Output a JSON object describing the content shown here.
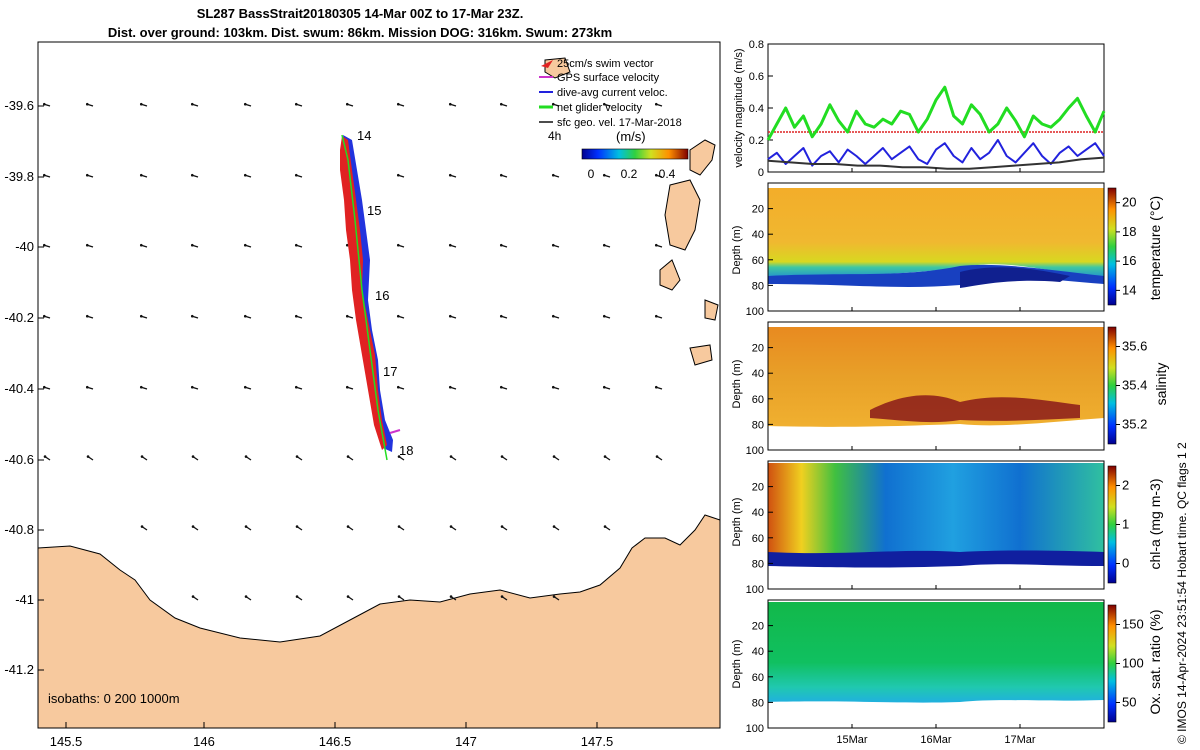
{
  "title_line1": "SL287 BassStrait20180305 14-Mar 00Z to 17-Mar 23Z.",
  "title_line2": "Dist. over ground: 103km. Dist. swum: 86km. Mission DOG: 316km. Swum: 273km",
  "colors": {
    "land": "#f7c99e",
    "glider_vel": "#22dd22",
    "dive_avg": "#2222dd",
    "swim_thresh": "#dd2222",
    "sfc_geo": "#333333",
    "gps": "#cc33cc"
  },
  "map": {
    "lon_ticks": [
      "145.5",
      "146",
      "146.5",
      "147",
      "147.5"
    ],
    "lat_ticks": [
      "-39.6",
      "-39.8",
      "-40",
      "-40.2",
      "-40.4",
      "-40.6",
      "-40.8",
      "-41",
      "-41.2"
    ],
    "day_labels": [
      "14",
      "15",
      "16",
      "17",
      "18"
    ],
    "legend": {
      "swim": "25cm/s swim vector",
      "gps": "GPS surface velocity",
      "dive": "dive-avg current veloc.",
      "net": "net glider velocity",
      "sfc": "sfc geo. vel. 17-Mar-2018",
      "hours": "4h",
      "unit": "(m/s)",
      "cb_ticks": [
        "0",
        "0.2",
        "0.4"
      ]
    },
    "isobaths": "isobaths: 0   200  1000m"
  },
  "chart_data": [
    {
      "type": "line",
      "ylabel": "velocity magnitude (m/s)",
      "y_ticks": [
        "0",
        "0.2",
        "0.4",
        "0.6",
        "0.8"
      ],
      "ylim": [
        0,
        0.8
      ],
      "threshold": 0.25,
      "series": [
        {
          "color": "#22dd22",
          "values": [
            0.2,
            0.3,
            0.4,
            0.28,
            0.35,
            0.22,
            0.3,
            0.42,
            0.32,
            0.25,
            0.38,
            0.3,
            0.28,
            0.33,
            0.3,
            0.38,
            0.36,
            0.25,
            0.33,
            0.45,
            0.53,
            0.35,
            0.3,
            0.42,
            0.36,
            0.25,
            0.3,
            0.4,
            0.32,
            0.22,
            0.35,
            0.3,
            0.28,
            0.33,
            0.4,
            0.46,
            0.35,
            0.25,
            0.38
          ]
        },
        {
          "color": "#2222dd",
          "values": [
            0.08,
            0.12,
            0.05,
            0.1,
            0.15,
            0.04,
            0.1,
            0.13,
            0.06,
            0.14,
            0.1,
            0.05,
            0.1,
            0.15,
            0.08,
            0.12,
            0.16,
            0.08,
            0.05,
            0.14,
            0.18,
            0.1,
            0.06,
            0.15,
            0.08,
            0.12,
            0.2,
            0.1,
            0.06,
            0.12,
            0.18,
            0.1,
            0.05,
            0.12,
            0.16,
            0.1,
            0.14,
            0.18,
            0.1
          ]
        },
        {
          "color": "#333333",
          "values": [
            0.07,
            0.06,
            0.05,
            0.05,
            0.04,
            0.04,
            0.03,
            0.03,
            0.02,
            0.02,
            0.03,
            0.04,
            0.05,
            0.06,
            0.08,
            0.09
          ]
        }
      ]
    },
    {
      "type": "heatmap",
      "ylabel": "Depth (m)",
      "clabel": "temperature (°C)",
      "c_ticks": [
        "14",
        "16",
        "18",
        "20"
      ],
      "y_ticks": [
        "20",
        "40",
        "60",
        "80",
        "100"
      ]
    },
    {
      "type": "heatmap",
      "ylabel": "Depth (m)",
      "clabel": "salinity",
      "c_ticks": [
        "35.2",
        "35.4",
        "35.6"
      ],
      "y_ticks": [
        "20",
        "40",
        "60",
        "80",
        "100"
      ]
    },
    {
      "type": "heatmap",
      "ylabel": "Depth (m)",
      "clabel": "chl-a (mg m-3)",
      "c_ticks": [
        "0",
        "1",
        "2"
      ],
      "y_ticks": [
        "20",
        "40",
        "60",
        "80",
        "100"
      ]
    },
    {
      "type": "heatmap",
      "ylabel": "Depth (m)",
      "clabel": "Ox. sat. ratio (%)",
      "c_ticks": [
        "50",
        "100",
        "150"
      ],
      "y_ticks": [
        "20",
        "40",
        "60",
        "80",
        "100"
      ],
      "x_ticks": [
        "15Mar",
        "16Mar",
        "17Mar"
      ]
    }
  ],
  "side_note": "© IMOS 14-Apr-2024 23:51:54 Hobart time. QC flags 1  2"
}
